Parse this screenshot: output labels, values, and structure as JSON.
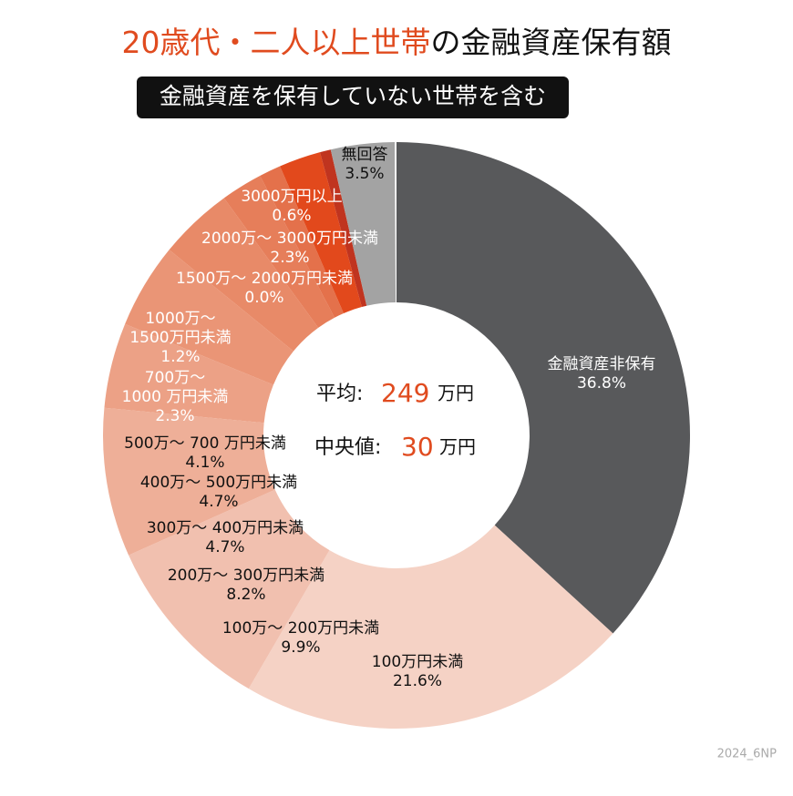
{
  "chart_data": {
    "type": "donut",
    "title": [
      "20歳代・二人以上世帯",
      "の金融資産保有額"
    ],
    "subtitle": "金融資産を保有していない世帯を含む",
    "categories": [
      [
        "金融資産非保有"
      ],
      [
        "100万円未満"
      ],
      [
        "100万〜 200万円未満"
      ],
      [
        "200万〜 300万円未満"
      ],
      [
        "300万〜 400万円未満"
      ],
      [
        "400万〜 500万円未満"
      ],
      [
        "500万〜 700 万円未満"
      ],
      [
        "700万〜",
        "1000 万円未満"
      ],
      [
        "1000万〜",
        "1500万円未満"
      ],
      [
        "1500万〜 2000万円未満"
      ],
      [
        "2000万〜 3000万円未満"
      ],
      [
        "3000万円以上"
      ],
      [
        "無回答"
      ]
    ],
    "values": [
      36.8,
      21.6,
      9.9,
      8.2,
      4.7,
      4.7,
      4.1,
      2.3,
      1.2,
      0.0,
      2.3,
      0.6,
      3.5
    ],
    "value_labels": [
      "36.8%",
      "21.6%",
      "9.9%",
      "8.2%",
      "4.7%",
      "4.7%",
      "4.1%",
      "2.3%",
      "1.2%",
      "0.0%",
      "2.3%",
      "0.6%",
      "3.5%"
    ],
    "colors": [
      "#58595b",
      "#f5d2c5",
      "#f1c0af",
      "#eeaf98",
      "#eca186",
      "#ea9576",
      "#e88a68",
      "#e67e5a",
      "#e4714b",
      "#e2643c",
      "#e2491c",
      "#c0341f",
      "#8e2a1e",
      "#a3a3a3"
    ],
    "center": [
      {
        "label": "平均:",
        "value": "249",
        "unit": "万円"
      },
      {
        "label": "中央値:",
        "value": "30",
        "unit": "万円"
      }
    ],
    "footer": "2024_6NP"
  }
}
